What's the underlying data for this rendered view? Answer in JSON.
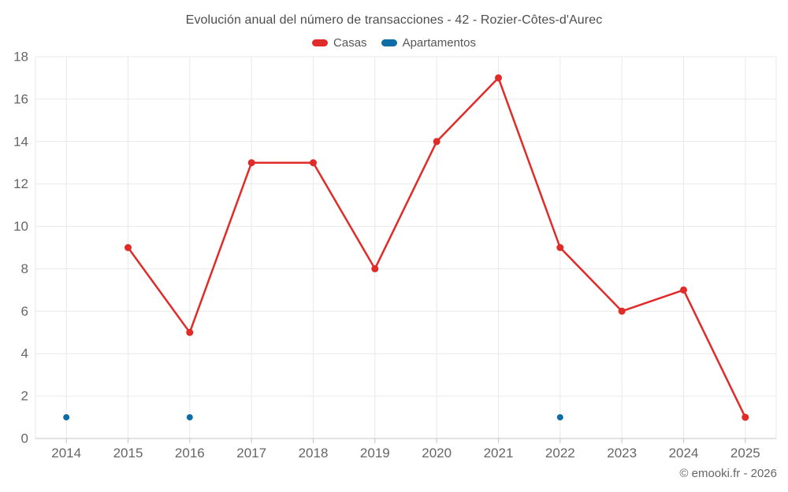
{
  "title": "Evolución anual del número de transacciones - 42 - Rozier-Côtes-d'Aurec",
  "legend": {
    "items": [
      {
        "label": "Casas",
        "color": "#e02b28"
      },
      {
        "label": "Apartamentos",
        "color": "#0e6da5"
      }
    ]
  },
  "footer": "© emooki.fr - 2026",
  "colors": {
    "grid": "#e9e9e9",
    "axis": "#c5c5c5",
    "tick_text": "#666666",
    "title_text": "#4d4d4d",
    "background": "#ffffff"
  },
  "chart_data": {
    "type": "line",
    "categories": [
      "2014",
      "2015",
      "2016",
      "2017",
      "2018",
      "2019",
      "2020",
      "2021",
      "2022",
      "2023",
      "2024",
      "2025"
    ],
    "series": [
      {
        "name": "Casas",
        "color": "#e02b28",
        "values": [
          null,
          9,
          5,
          13,
          13,
          8,
          14,
          17,
          9,
          6,
          7,
          1
        ],
        "draw_line": true,
        "marker_radius": 4.5
      },
      {
        "name": "Apartamentos",
        "color": "#0e6da5",
        "values": [
          1,
          null,
          1,
          null,
          null,
          null,
          null,
          null,
          1,
          null,
          null,
          null
        ],
        "draw_line": true,
        "marker_radius": 4
      }
    ],
    "title": "Evolución anual del número de transacciones - 42 - Rozier-Côtes-d'Aurec",
    "xlabel": "",
    "ylabel": "",
    "ylim": [
      0,
      18
    ],
    "yticks": [
      0,
      2,
      4,
      6,
      8,
      10,
      12,
      14,
      16,
      18
    ],
    "grid": true,
    "legend_position": "top"
  }
}
